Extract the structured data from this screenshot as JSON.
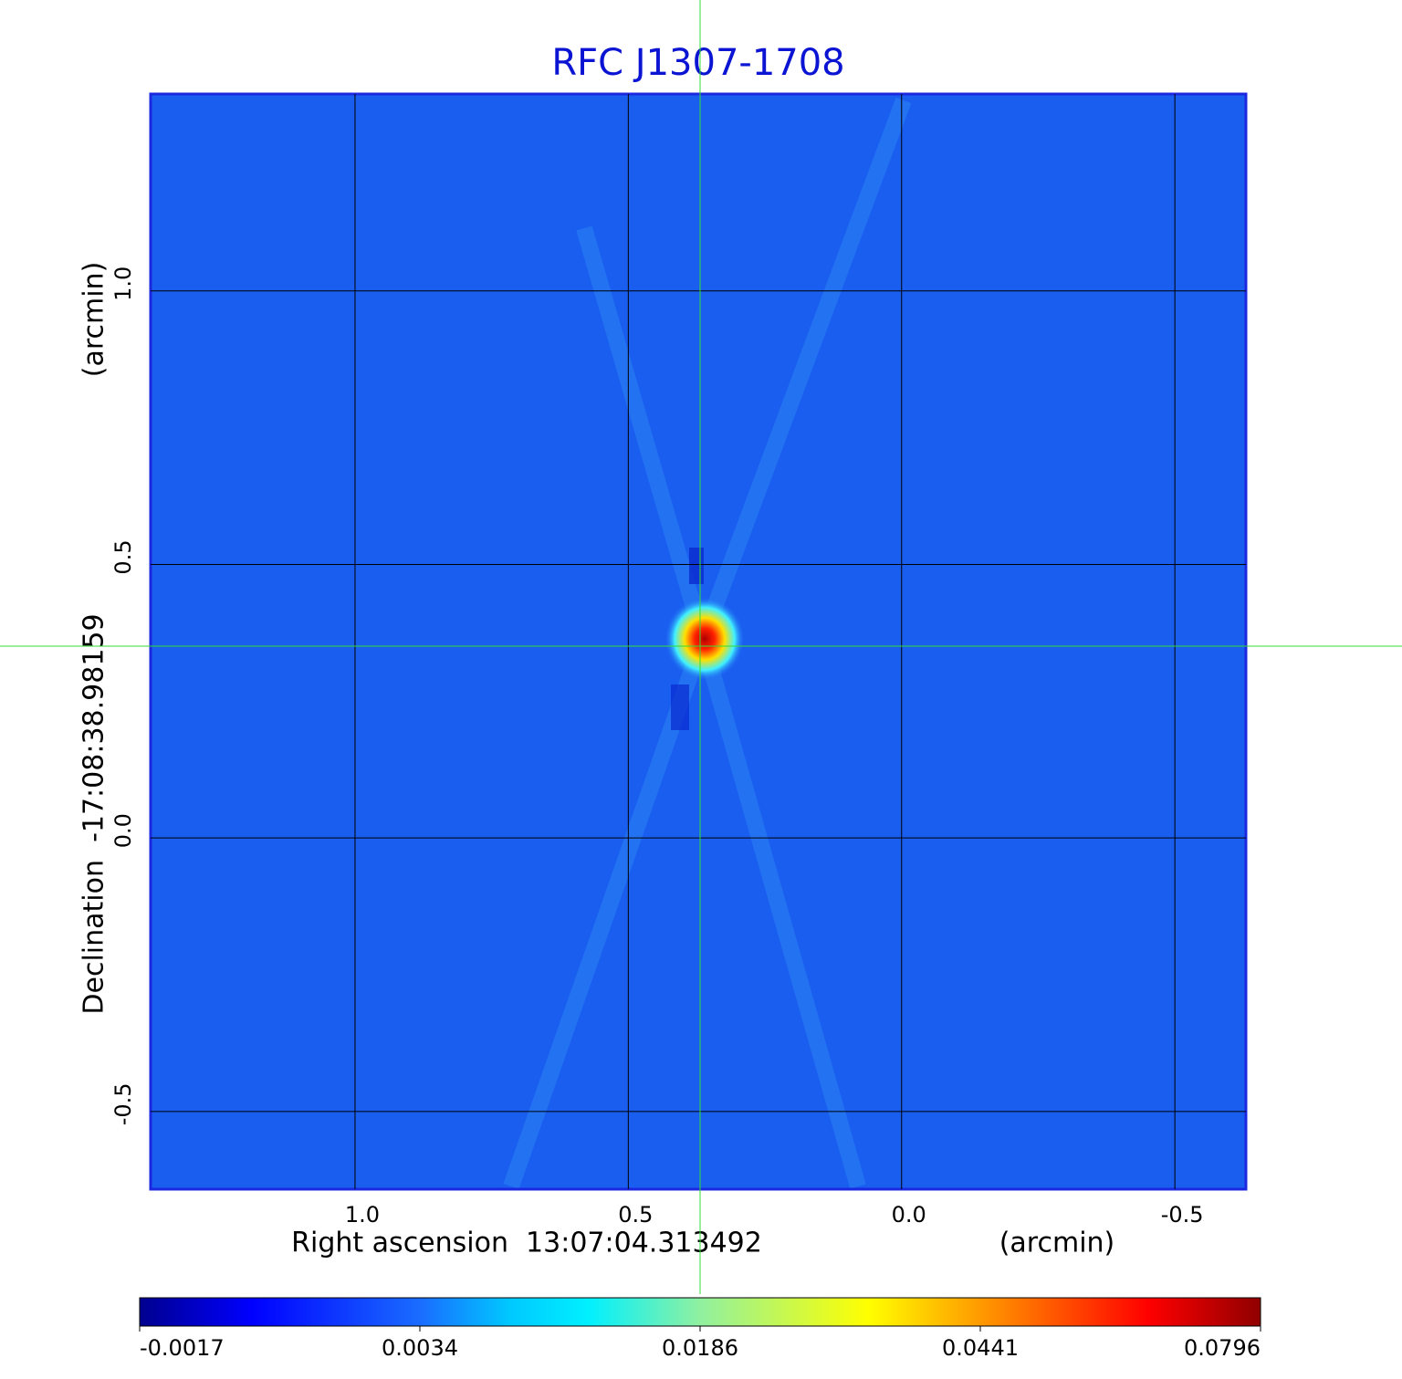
{
  "chart_data": {
    "type": "image",
    "title": "RFC J1307-1708",
    "x_label": "Right ascension  13:07:04.313492",
    "x_unit_label": "(arcmin)",
    "y_label": "Declination  -17:08:38.98159",
    "y_unit_label": "(arcmin)",
    "xlim": [
      1.374,
      -0.63
    ],
    "ylim": [
      -0.642,
      1.36
    ],
    "xticks": [
      {
        "value": 1.0,
        "label": "1.0"
      },
      {
        "value": 0.5,
        "label": "0.5"
      },
      {
        "value": 0,
        "label": "0.0"
      },
      {
        "value": -0.5,
        "label": "-0.5"
      }
    ],
    "yticks": [
      {
        "value": 1.0,
        "label": "1.0"
      },
      {
        "value": 0.5,
        "label": "0.5"
      },
      {
        "value": 0,
        "label": "0.0"
      },
      {
        "value": -0.5,
        "label": "-0.5"
      }
    ],
    "grid": true,
    "colorbar_ticks": [
      -0.0017,
      0.0034,
      0.0186,
      0.0441,
      0.0796
    ]
  }
}
